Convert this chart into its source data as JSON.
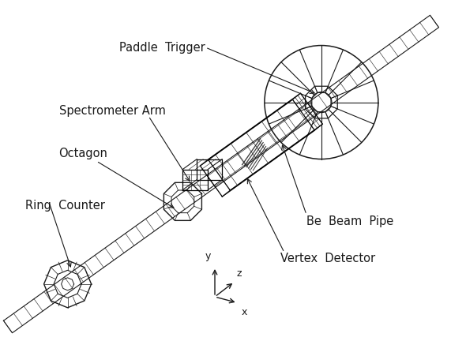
{
  "bg_color": "#ffffff",
  "line_color": "#1a1a1a",
  "labels": {
    "paddle_trigger": "Paddle  Trigger",
    "spectrometer_arm": "Spectrometer Arm",
    "octagon": "Octagon",
    "ring_counter": "Ring  Counter",
    "be_beam_pipe": "Be  Beam  Pipe",
    "vertex_detector": "Vertex  Detector",
    "x_axis": "x",
    "y_axis": "y",
    "z_axis": "z"
  },
  "font_size": 10.5,
  "beam_t0": [
    0.03,
    0.06
  ],
  "beam_t1": [
    0.97,
    0.94
  ]
}
